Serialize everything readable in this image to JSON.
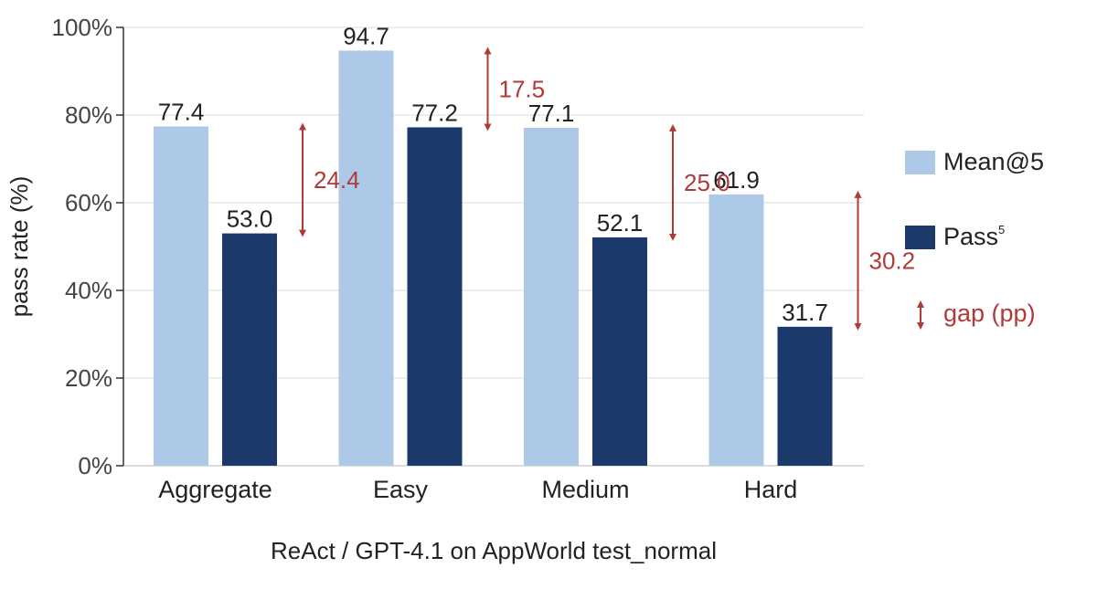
{
  "chart_data": {
    "type": "bar",
    "categories": [
      "Aggregate",
      "Easy",
      "Medium",
      "Hard"
    ],
    "series": [
      {
        "name": "Mean@5",
        "values": [
          77.4,
          94.7,
          77.1,
          61.9
        ],
        "color": "#aec8e8"
      },
      {
        "name": "Pass",
        "name_superscript": "5",
        "values": [
          53.0,
          77.2,
          52.1,
          31.7
        ],
        "color": "#1b3a6b"
      }
    ],
    "gaps": [
      24.4,
      17.5,
      25.0,
      30.2
    ],
    "gap_color": "#b03a3a",
    "gap_legend_label": "gap (pp)",
    "title": "",
    "xlabel": "ReAct / GPT-4.1 on AppWorld test_normal",
    "ylabel": "pass rate (%)",
    "ylim": [
      0,
      100
    ],
    "yticks": [
      "0%",
      "20%",
      "40%",
      "60%",
      "80%",
      "100%"
    ],
    "grid": true,
    "legend_position": "right"
  }
}
